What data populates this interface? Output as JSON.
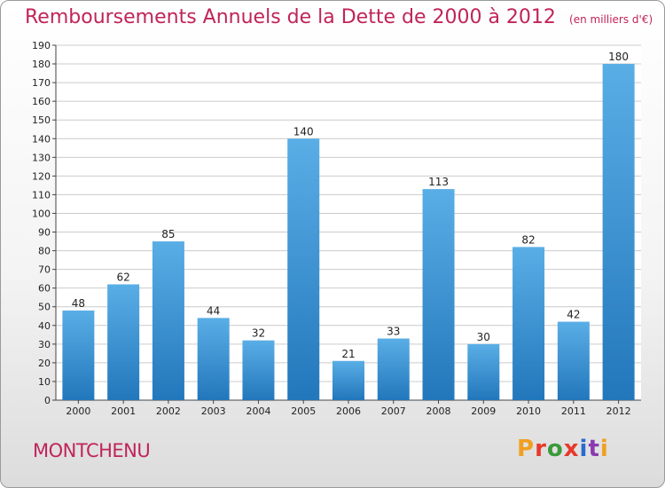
{
  "title": "Remboursements Annuels de la Dette de 2000 à 2012",
  "subtitle": "(en milliers d'€)",
  "commune": "MONTCHENU",
  "logo": {
    "text": "Proxiti",
    "letters": [
      "P",
      "r",
      "o",
      "x",
      "i",
      "t",
      "i"
    ],
    "colors": [
      "#f0a020",
      "#e63a2a",
      "#3a9a3a",
      "#e63a2a",
      "#2a6ad0",
      "#8a3ab0",
      "#f0a020"
    ]
  },
  "colors": {
    "title": "#c0245a",
    "bar_top": "#5aaee6",
    "bar_bottom": "#2277bb"
  },
  "chart_data": {
    "type": "bar",
    "categories": [
      "2000",
      "2001",
      "2002",
      "2003",
      "2004",
      "2005",
      "2006",
      "2007",
      "2008",
      "2009",
      "2010",
      "2011",
      "2012"
    ],
    "values": [
      48,
      62,
      85,
      44,
      32,
      140,
      21,
      33,
      113,
      30,
      82,
      42,
      180
    ],
    "ylim": [
      0,
      190
    ],
    "yticks": [
      0,
      10,
      20,
      30,
      40,
      50,
      60,
      70,
      80,
      90,
      100,
      110,
      120,
      130,
      140,
      150,
      160,
      170,
      180,
      190
    ],
    "grid": true,
    "xlabel": "",
    "ylabel": ""
  }
}
